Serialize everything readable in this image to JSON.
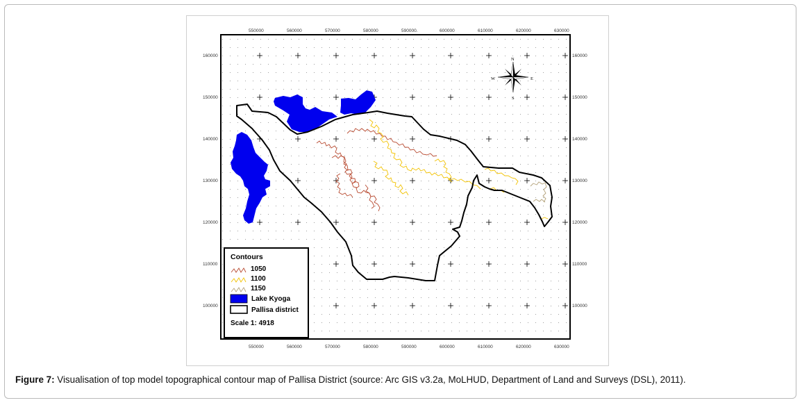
{
  "caption": {
    "label": "Figure 7:",
    "text": " Visualisation of top model topographical contour map of Pallisa District (source: Arc GIS v3.2a, MoLHUD, Department of Land and Surveys (DSL), 2011)."
  },
  "map": {
    "x_ticks_top": [
      "550000",
      "560000",
      "570000",
      "580000",
      "590000.",
      "600000",
      "610000",
      "620000",
      "630000"
    ],
    "x_ticks_bottom": [
      "550000",
      "560000",
      "570000",
      "580000",
      "590000",
      "600000",
      "610000",
      "620000",
      "630000"
    ],
    "y_ticks_left": [
      "160000",
      "150000",
      "140000",
      "130000",
      "120000",
      "110000",
      "100000"
    ],
    "y_ticks_right": [
      "160000",
      "150000",
      "140000",
      "130000",
      "120000",
      "110000",
      "100000"
    ],
    "compass": {
      "n": "N",
      "s": "S",
      "e": "E",
      "w": "W"
    },
    "colors": {
      "lake": "#0000ee",
      "district_boundary": "#000000",
      "contour_1050": "#b84a30",
      "contour_1100": "#f2c200",
      "contour_1150": "#b3a27a"
    }
  },
  "legend": {
    "title": "Contours",
    "items": [
      {
        "label": "1050",
        "kind": "contour",
        "color": "#b84a30"
      },
      {
        "label": "1100",
        "kind": "contour",
        "color": "#f2c200"
      },
      {
        "label": "1150",
        "kind": "contour",
        "color": "#b3a27a"
      },
      {
        "label": "Lake Kyoga",
        "kind": "fill",
        "color": "#0000ee"
      },
      {
        "label": "Pallisa district",
        "kind": "outline",
        "color": "#000000"
      }
    ],
    "scale": "Scale 1: 4918"
  }
}
